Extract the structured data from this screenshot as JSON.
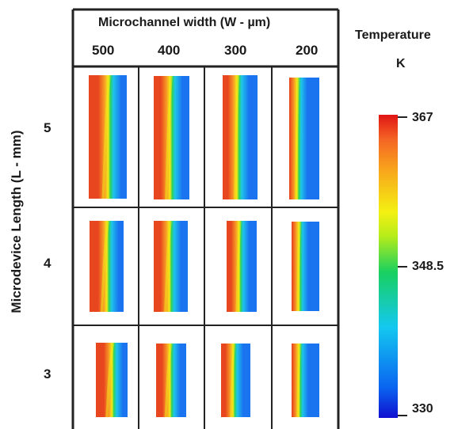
{
  "header": {
    "column_axis_label": "Microchannel width (W - µm)",
    "row_axis_label": "Microdevice Length (L - mm)"
  },
  "columns": [
    "500",
    "400",
    "300",
    "200"
  ],
  "rows": [
    "5",
    "4",
    "3"
  ],
  "colorbar": {
    "title": "Temperature",
    "unit": "K",
    "max": "367",
    "mid": "348.5",
    "min": "330"
  },
  "colors": {
    "hot": "#e8461e",
    "warm": "#f79a25",
    "mid_yellow": "#f2ea17",
    "mid_green": "#2cd25a",
    "cool_cyan": "#1ec4ea",
    "cold": "#1a74f0"
  }
}
